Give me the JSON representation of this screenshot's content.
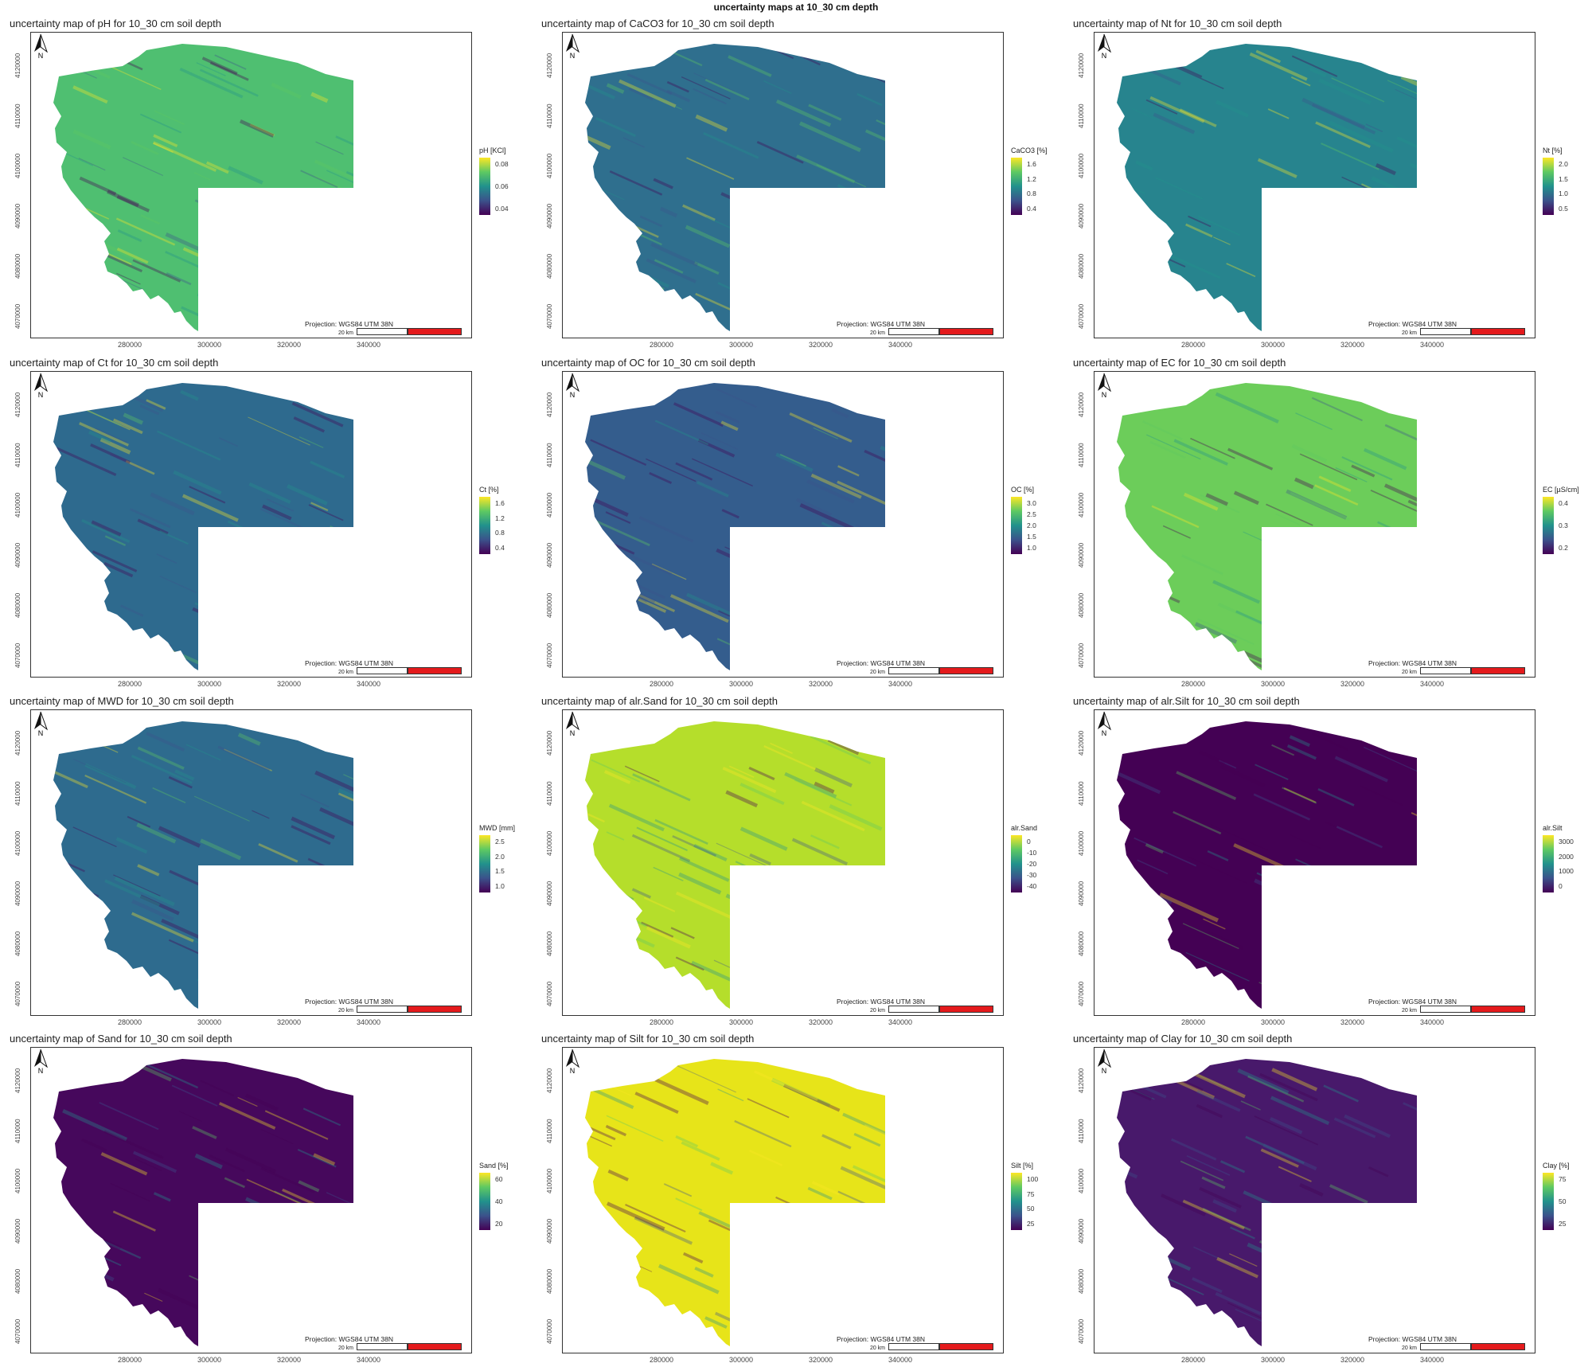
{
  "title": "uncertainty maps at 10_30 cm depth",
  "projection": "Projection: WGS84 UTM 38N",
  "scalebar": "20 km",
  "north_label": "N",
  "x_ticks": [
    "280000",
    "300000",
    "320000",
    "340000"
  ],
  "y_ticks": [
    "4120000",
    "4110000",
    "4100000",
    "4090000",
    "4080000",
    "4070000"
  ],
  "palette": [
    "#440154",
    "#3b528b",
    "#21918c",
    "#5ec962",
    "#fde725"
  ],
  "panels": [
    {
      "title": "uncertainty map of pH for 10_30 cm soil depth",
      "legend": "pH [KCl]",
      "ticks": [
        "0.08",
        "0.06",
        "0.04"
      ],
      "fill": "#4fbf71"
    },
    {
      "title": "uncertainty map of CaCO3 for 10_30 cm soil depth",
      "legend": "CaCO3 [%]",
      "ticks": [
        "1.6",
        "1.2",
        "0.8",
        "0.4"
      ],
      "fill": "#2f6f8e"
    },
    {
      "title": "uncertainty map of Nt for 10_30 cm soil depth",
      "legend": "Nt [%]",
      "ticks": [
        "2.0",
        "1.5",
        "1.0",
        "0.5"
      ],
      "fill": "#27848e"
    },
    {
      "title": "uncertainty map of Ct for 10_30 cm soil depth",
      "legend": "Ct [%]",
      "ticks": [
        "1.6",
        "1.2",
        "0.8",
        "0.4"
      ],
      "fill": "#2e6a8e"
    },
    {
      "title": "uncertainty map of OC for 10_30 cm soil depth",
      "legend": "OC [%]",
      "ticks": [
        "3.0",
        "2.5",
        "2.0",
        "1.5",
        "1.0"
      ],
      "fill": "#345d8d"
    },
    {
      "title": "uncertainty map of EC for 10_30 cm soil depth",
      "legend": "EC [µS/cm]",
      "ticks": [
        "0.4",
        "0.3",
        "0.2"
      ],
      "fill": "#6ccd5a"
    },
    {
      "title": "uncertainty map of MWD for 10_30 cm soil depth",
      "legend": "MWD [mm]",
      "ticks": [
        "2.5",
        "2.0",
        "1.5",
        "1.0"
      ],
      "fill": "#2e6b8e"
    },
    {
      "title": "uncertainty map of alr.Sand for 10_30 cm soil depth",
      "legend": "alr.Sand",
      "ticks": [
        "0",
        "-10",
        "-20",
        "-30",
        "-40"
      ],
      "fill": "#b5de2b"
    },
    {
      "title": "uncertainty map of alr.Silt for 10_30 cm soil depth",
      "legend": "alr.Silt",
      "ticks": [
        "3000",
        "2000",
        "1000",
        "0"
      ],
      "fill": "#440154"
    },
    {
      "title": "uncertainty map of Sand for 10_30 cm soil depth",
      "legend": "Sand [%]",
      "ticks": [
        "60",
        "40",
        "20"
      ],
      "fill": "#46085c"
    },
    {
      "title": "uncertainty map of Silt for 10_30 cm soil depth",
      "legend": "Silt [%]",
      "ticks": [
        "100",
        "75",
        "50",
        "25"
      ],
      "fill": "#e7e419"
    },
    {
      "title": "uncertainty map of Clay for 10_30 cm soil depth",
      "legend": "Clay [%]",
      "ticks": [
        "75",
        "50",
        "25"
      ],
      "fill": "#48196b"
    }
  ]
}
